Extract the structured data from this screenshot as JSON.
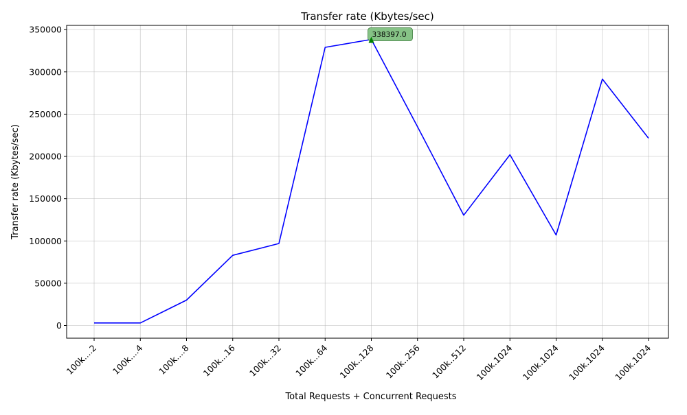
{
  "chart_data": {
    "type": "line",
    "title": "Transfer rate (Kbytes/sec)",
    "xlabel": "Total Requests + Concurrent Requests",
    "ylabel": "Transfer rate (Kbytes/sec)",
    "categories": [
      "100k....2",
      "100k....4",
      "100k....8",
      "100k...16",
      "100k...32",
      "100k...64",
      "100k..128",
      "100k..256",
      "100k..512",
      "100k.1024",
      "100k.1024",
      "100k.1024",
      "100k.1024"
    ],
    "series": [
      {
        "values": [
          3000,
          3000,
          30000,
          83000,
          97000,
          329000,
          338397.0,
          235000,
          130500,
          202000,
          107000,
          291500,
          221500
        ]
      }
    ],
    "ylim": [
      -15000,
      355000
    ],
    "yticks": [
      0,
      50000,
      100000,
      150000,
      200000,
      250000,
      300000,
      350000
    ],
    "grid": true,
    "line_color": "#0000ff",
    "annotation": {
      "text": "338397.0",
      "point_index": 6,
      "marker_color": "#008000",
      "box_color": "#80c080"
    }
  }
}
